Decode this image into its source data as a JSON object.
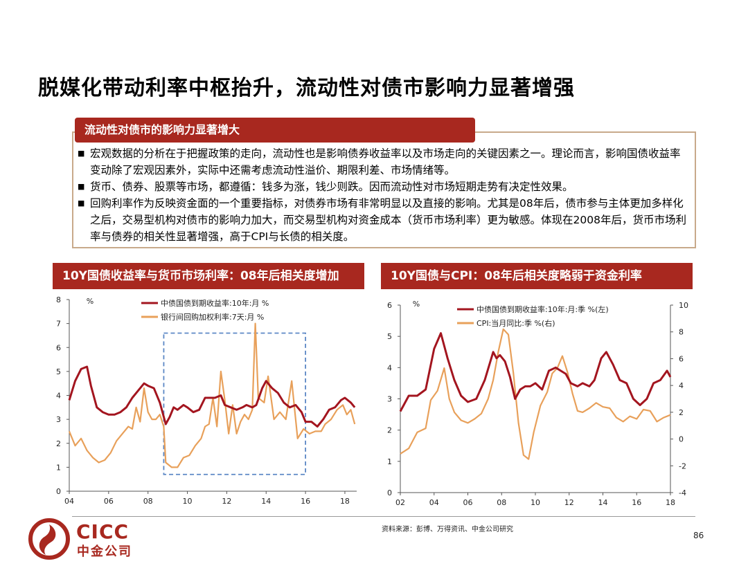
{
  "title": "脱媒化带动利率中枢抬升，流动性对债市影响力显著增强",
  "summary": {
    "header": "流动性对债市的影响力显著增大",
    "bullet_mark": "■",
    "bullets": [
      "宏观数据的分析在于把握政策的走向，流动性也是影响债券收益率以及市场走向的关键因素之一。理论而言，影响国债收益率变动除了宏观因素外，实际中还需考虑流动性溢价、期限利差、市场情绪等。",
      "货币、债券、股票等市场，都遵循：钱多为涨，钱少则跌。因而流动性对市场短期走势有决定性效果。",
      "回购利率作为反映资金面的一个重要指标，对债券市场有非常明显以及直接的影响。尤其是08年后，债市参与主体更加多样化之后，交易型机构对债市的影响力加大，而交易型机构对资金成本（货币市场利率）更为敏感。体现在2008年后，货币市场利率与债券的相关性显著增强，高于CPI与长债的相关度。"
    ]
  },
  "chart_data": [
    {
      "type": "line",
      "title": "10Y国债收益率与货币市场利率：08年后相关度增加",
      "ylabel": "%",
      "ylim": [
        0,
        8
      ],
      "yticks": [
        "0",
        "1",
        "2",
        "3",
        "4",
        "5",
        "6",
        "7",
        "8"
      ],
      "xlim": [
        2004,
        2018.6
      ],
      "xtick_values": [
        2004,
        2006,
        2008,
        2010,
        2012,
        2014,
        2016,
        2018
      ],
      "xticks": [
        "04",
        "06",
        "08",
        "10",
        "12",
        "14",
        "16",
        "18"
      ],
      "legend_placement": "top",
      "highlight_box": {
        "x": [
          2008.8,
          2016
        ],
        "y": [
          0.7,
          6.6
        ],
        "style": "dashed",
        "color": "#5b87c5"
      },
      "series": [
        {
          "name": "中债国债到期收益率:10年:月 %",
          "color": "#a3151f",
          "x": [
            2004.0,
            2004.3,
            2004.6,
            2004.9,
            2005.1,
            2005.4,
            2005.7,
            2006.0,
            2006.3,
            2006.6,
            2006.9,
            2007.2,
            2007.5,
            2007.8,
            2008.0,
            2008.3,
            2008.6,
            2008.9,
            2009.1,
            2009.3,
            2009.5,
            2009.8,
            2010.0,
            2010.3,
            2010.6,
            2010.9,
            2011.1,
            2011.4,
            2011.7,
            2011.9,
            2012.2,
            2012.5,
            2012.8,
            2013.0,
            2013.3,
            2013.5,
            2013.8,
            2014.0,
            2014.3,
            2014.6,
            2014.9,
            2015.2,
            2015.5,
            2015.8,
            2016.0,
            2016.3,
            2016.6,
            2016.9,
            2017.2,
            2017.5,
            2017.8,
            2018.0,
            2018.3,
            2018.5
          ],
          "values": [
            3.8,
            4.6,
            5.1,
            5.2,
            4.4,
            3.5,
            3.3,
            3.2,
            3.2,
            3.3,
            3.5,
            3.9,
            4.2,
            4.5,
            4.4,
            4.3,
            3.7,
            2.8,
            3.1,
            3.5,
            3.4,
            3.6,
            3.5,
            3.3,
            3.4,
            3.9,
            3.9,
            3.9,
            4.0,
            3.6,
            3.5,
            3.4,
            3.5,
            3.6,
            3.5,
            3.6,
            4.3,
            4.6,
            4.3,
            4.1,
            3.7,
            3.5,
            3.6,
            3.3,
            2.9,
            2.9,
            2.7,
            3.0,
            3.4,
            3.5,
            3.8,
            3.9,
            3.7,
            3.5
          ]
        },
        {
          "name": "银行间回购加权利率:7天:月 %",
          "color": "#e8a05a",
          "x": [
            2004.0,
            2004.3,
            2004.6,
            2004.9,
            2005.2,
            2005.5,
            2005.8,
            2006.1,
            2006.4,
            2006.7,
            2007.0,
            2007.2,
            2007.4,
            2007.6,
            2007.8,
            2008.0,
            2008.2,
            2008.4,
            2008.6,
            2008.8,
            2008.9,
            2009.2,
            2009.5,
            2009.8,
            2010.1,
            2010.4,
            2010.7,
            2010.9,
            2011.1,
            2011.3,
            2011.5,
            2011.7,
            2011.9,
            2012.1,
            2012.3,
            2012.5,
            2012.7,
            2012.9,
            2013.1,
            2013.3,
            2013.45,
            2013.6,
            2013.9,
            2014.1,
            2014.4,
            2014.7,
            2015.0,
            2015.3,
            2015.6,
            2015.9,
            2016.2,
            2016.5,
            2016.8,
            2017.0,
            2017.3,
            2017.6,
            2017.9,
            2018.1,
            2018.3,
            2018.5
          ],
          "values": [
            2.5,
            1.9,
            2.2,
            1.7,
            1.4,
            1.2,
            1.3,
            1.6,
            2.1,
            2.4,
            2.7,
            2.6,
            3.5,
            2.9,
            4.3,
            3.3,
            3.0,
            3.0,
            3.2,
            2.7,
            1.2,
            1.0,
            1.0,
            1.4,
            1.5,
            1.9,
            2.2,
            2.7,
            2.8,
            3.9,
            2.7,
            5.0,
            3.8,
            2.4,
            3.6,
            2.4,
            2.9,
            3.2,
            3.0,
            3.4,
            7.0,
            3.9,
            3.7,
            4.8,
            3.0,
            3.3,
            3.0,
            4.6,
            2.2,
            2.6,
            2.4,
            2.5,
            2.5,
            2.8,
            3.0,
            3.4,
            3.6,
            3.2,
            3.4,
            2.8
          ]
        }
      ]
    },
    {
      "type": "line",
      "title": "10Y国债与CPI：08年后相关度略弱于资金利率",
      "ylabel": "%",
      "ylim": [
        0,
        6
      ],
      "yticks": [
        "0",
        "1",
        "2",
        "3",
        "4",
        "5",
        "6"
      ],
      "y2lim": [
        -4,
        10
      ],
      "y2ticks": [
        "-4",
        "-2",
        "0",
        "2",
        "4",
        "6",
        "8",
        "10"
      ],
      "xlim": [
        2002,
        2018
      ],
      "xtick_values": [
        2002,
        2004,
        2006,
        2008,
        2010,
        2012,
        2014,
        2016,
        2018
      ],
      "xticks": [
        "02",
        "04",
        "06",
        "08",
        "10",
        "12",
        "14",
        "16",
        "18"
      ],
      "legend_placement": "top-left",
      "series": [
        {
          "name": "中债国债到期收益率:10年:月:季 %(左)",
          "axis": "left",
          "color": "#a3151f",
          "x": [
            2002.0,
            2002.5,
            2003.0,
            2003.5,
            2004.0,
            2004.4,
            2004.8,
            2005.2,
            2005.6,
            2006.0,
            2006.5,
            2007.0,
            2007.5,
            2007.7,
            2007.9,
            2008.2,
            2008.5,
            2008.8,
            2009.1,
            2009.4,
            2009.7,
            2010.0,
            2010.4,
            2010.8,
            2011.2,
            2011.5,
            2011.8,
            2012.1,
            2012.5,
            2012.8,
            2013.2,
            2013.5,
            2013.9,
            2014.2,
            2014.6,
            2015.0,
            2015.4,
            2015.8,
            2016.2,
            2016.6,
            2017.0,
            2017.4,
            2017.8,
            2018.0
          ],
          "values": [
            2.6,
            3.1,
            3.1,
            3.3,
            4.6,
            5.1,
            4.3,
            3.6,
            3.1,
            2.9,
            3.0,
            3.6,
            4.5,
            4.3,
            4.4,
            4.2,
            3.7,
            3.0,
            3.3,
            3.4,
            3.4,
            3.5,
            3.3,
            3.9,
            4.0,
            3.9,
            3.8,
            3.5,
            3.4,
            3.5,
            3.4,
            3.6,
            4.3,
            4.5,
            4.1,
            3.6,
            3.5,
            3.0,
            2.8,
            3.0,
            3.5,
            3.6,
            3.9,
            3.7
          ]
        },
        {
          "name": "CPI:当月同比:季 %(右)",
          "axis": "right",
          "color": "#e8a05a",
          "x": [
            2002.0,
            2002.5,
            2003.0,
            2003.5,
            2003.8,
            2004.2,
            2004.6,
            2004.9,
            2005.2,
            2005.6,
            2006.0,
            2006.4,
            2006.8,
            2007.2,
            2007.5,
            2007.8,
            2008.1,
            2008.4,
            2008.7,
            2009.0,
            2009.3,
            2009.6,
            2009.9,
            2010.3,
            2010.7,
            2011.0,
            2011.3,
            2011.6,
            2011.9,
            2012.2,
            2012.5,
            2012.8,
            2013.2,
            2013.6,
            2014.0,
            2014.4,
            2014.8,
            2015.2,
            2015.6,
            2016.0,
            2016.4,
            2016.8,
            2017.2,
            2017.6,
            2018.0
          ],
          "values": [
            -1.1,
            -0.7,
            0.5,
            0.8,
            2.9,
            3.6,
            5.3,
            3.0,
            2.0,
            1.4,
            1.2,
            1.5,
            1.9,
            3.0,
            4.4,
            6.5,
            8.2,
            7.8,
            4.9,
            1.2,
            -1.2,
            -1.5,
            0.5,
            2.5,
            3.5,
            4.9,
            5.3,
            6.2,
            5.0,
            3.4,
            2.1,
            2.0,
            2.3,
            2.7,
            2.4,
            2.3,
            1.6,
            1.3,
            1.7,
            1.5,
            2.2,
            2.1,
            1.3,
            1.6,
            1.8
          ]
        }
      ]
    }
  ],
  "footer": {
    "source": "资料来源：彭博、万得资讯、中金公司研究",
    "page_number": "86",
    "logo_en": "CICC",
    "logo_cn": "中金公司"
  }
}
